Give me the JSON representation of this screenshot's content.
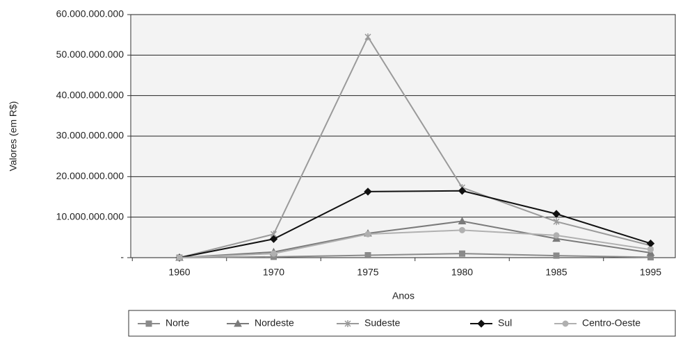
{
  "chart_data": {
    "type": "line",
    "y_label": "Valores (em R$)",
    "x_label": "Anos",
    "categories": [
      "1960",
      "1970",
      "1975",
      "1980",
      "1985",
      "1995"
    ],
    "series": [
      {
        "name": "Norte",
        "color": "#8a8a8a",
        "marker": "square",
        "values": [
          0,
          200000000,
          600000000,
          1000000000,
          500000000,
          100000000
        ]
      },
      {
        "name": "Nordeste",
        "color": "#7a7a7a",
        "marker": "triangle",
        "values": [
          0,
          1400000000,
          6000000000,
          9000000000,
          4700000000,
          1200000000
        ]
      },
      {
        "name": "Sudeste",
        "color": "#9a9a9a",
        "marker": "x",
        "values": [
          0,
          5800000000,
          54500000000,
          17300000000,
          8900000000,
          3000000000
        ]
      },
      {
        "name": "Sul",
        "color": "#111111",
        "marker": "diamond",
        "values": [
          0,
          4600000000,
          16300000000,
          16500000000,
          10800000000,
          3500000000
        ]
      },
      {
        "name": "Centro-Oeste",
        "color": "#b0b0b0",
        "marker": "circle",
        "values": [
          0,
          1000000000,
          5800000000,
          6800000000,
          5500000000,
          2000000000
        ]
      }
    ],
    "ylim": [
      0,
      60000000000
    ],
    "yticks": [
      {
        "value": 0,
        "label": "-"
      },
      {
        "value": 10000000000,
        "label": "10.000.000.000"
      },
      {
        "value": 20000000000,
        "label": "20.000.000.000"
      },
      {
        "value": 30000000000,
        "label": "30.000.000.000"
      },
      {
        "value": 40000000000,
        "label": "40.000.000.000"
      },
      {
        "value": 50000000000,
        "label": "50.000.000.000"
      },
      {
        "value": 60000000000,
        "label": "60.000.000.000"
      }
    ],
    "grid": true,
    "legend": "bottom"
  }
}
